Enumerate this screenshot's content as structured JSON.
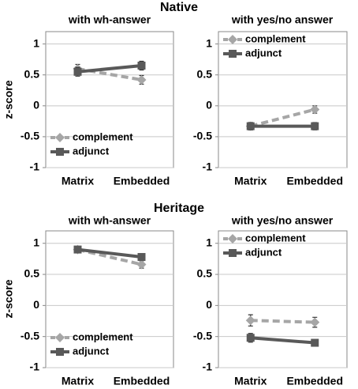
{
  "groups": [
    {
      "title": "Native",
      "ylabel": "z-score"
    },
    {
      "title": "Heritage",
      "ylabel": "z-score"
    }
  ],
  "chart_data": [
    {
      "type": "line",
      "title": "with wh-answer",
      "categories": [
        "Matrix",
        "Embedded"
      ],
      "ylim": [
        -1,
        1.2
      ],
      "yticks": [
        -1,
        -0.5,
        0,
        0.5,
        1
      ],
      "grid": true,
      "legend": "lower left",
      "series": [
        {
          "name": "complement",
          "color": "#a6a6a6",
          "dashed": true,
          "marker": "diamond",
          "values": [
            0.6,
            0.42
          ],
          "errors": [
            0.07,
            0.07
          ]
        },
        {
          "name": "adjunct",
          "color": "#595959",
          "dashed": false,
          "marker": "square",
          "values": [
            0.55,
            0.65
          ],
          "errors": [
            0.07,
            0.07
          ]
        }
      ]
    },
    {
      "type": "line",
      "title": "with yes/no answer",
      "categories": [
        "Matrix",
        "Embedded"
      ],
      "ylim": [
        -1,
        1.2
      ],
      "yticks": [
        -1,
        -0.5,
        0,
        0.5,
        1
      ],
      "grid": true,
      "legend": "upper left",
      "series": [
        {
          "name": "complement",
          "color": "#a6a6a6",
          "dashed": true,
          "marker": "diamond",
          "values": [
            -0.33,
            -0.06
          ],
          "errors": [
            0.06,
            0.06
          ]
        },
        {
          "name": "adjunct",
          "color": "#595959",
          "dashed": false,
          "marker": "square",
          "values": [
            -0.33,
            -0.33
          ],
          "errors": [
            0.06,
            0.06
          ]
        }
      ]
    },
    {
      "type": "line",
      "title": "with wh-answer",
      "categories": [
        "Matrix",
        "Embedded"
      ],
      "ylim": [
        -1,
        1.2
      ],
      "yticks": [
        -1,
        -0.5,
        0,
        0.5,
        1
      ],
      "grid": true,
      "legend": "lower left",
      "series": [
        {
          "name": "complement",
          "color": "#a6a6a6",
          "dashed": true,
          "marker": "diamond",
          "values": [
            0.9,
            0.66
          ],
          "errors": [
            0.05,
            0.06
          ]
        },
        {
          "name": "adjunct",
          "color": "#595959",
          "dashed": false,
          "marker": "square",
          "values": [
            0.9,
            0.78
          ],
          "errors": [
            0.05,
            0.05
          ]
        }
      ]
    },
    {
      "type": "line",
      "title": "with yes/no answer",
      "categories": [
        "Matrix",
        "Embedded"
      ],
      "ylim": [
        -1,
        1.2
      ],
      "yticks": [
        -1,
        -0.5,
        0,
        0.5,
        1
      ],
      "grid": true,
      "legend": "upper left",
      "series": [
        {
          "name": "complement",
          "color": "#a6a6a6",
          "dashed": true,
          "marker": "diamond",
          "values": [
            -0.24,
            -0.27
          ],
          "errors": [
            0.09,
            0.08
          ]
        },
        {
          "name": "adjunct",
          "color": "#595959",
          "dashed": false,
          "marker": "square",
          "values": [
            -0.52,
            -0.6
          ],
          "errors": [
            0.07,
            0.05
          ]
        }
      ]
    }
  ]
}
